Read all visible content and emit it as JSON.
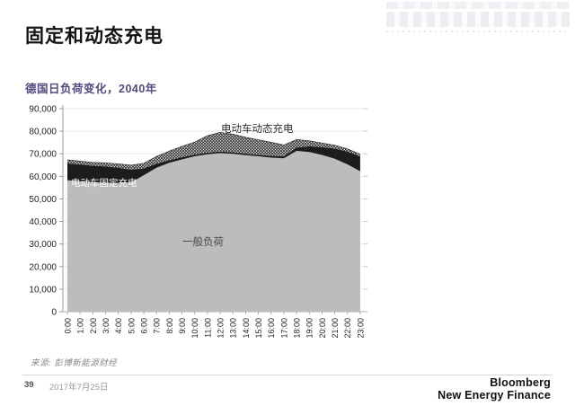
{
  "slide": {
    "title": "固定和动态充电",
    "subtitle": "德国日负荷变化，2040年"
  },
  "chart_data": {
    "type": "area",
    "stacked": true,
    "title": "德国日负荷变化，2040年",
    "xlabel": "",
    "ylabel": "",
    "ylim": [
      0,
      90000
    ],
    "ytick_step": 10000,
    "yticks": [
      "0",
      "10,000",
      "20,000",
      "30,000",
      "40,000",
      "50,000",
      "60,000",
      "70,000",
      "80,000",
      "90,000"
    ],
    "grid": "horizontal-faint",
    "legend": "inline-labels-on-areas",
    "categories": [
      "0:00",
      "1:00",
      "2:00",
      "3:00",
      "4:00",
      "5:00",
      "6:00",
      "7:00",
      "8:00",
      "9:00",
      "10:00",
      "11:00",
      "12:00",
      "13:00",
      "14:00",
      "15:00",
      "16:00",
      "17:00",
      "18:00",
      "19:00",
      "20:00",
      "21:00",
      "22:00",
      "23:00"
    ],
    "series": [
      {
        "name": "一般负荷",
        "style": "solid",
        "color": "#bcbcbc",
        "values": [
          58300,
          57800,
          57400,
          57200,
          57100,
          57300,
          60500,
          63800,
          66000,
          67500,
          68900,
          69800,
          70300,
          70000,
          69400,
          68900,
          68300,
          68000,
          71300,
          70800,
          69500,
          67800,
          65300,
          62300
        ]
      },
      {
        "name": "电动车固定充电",
        "style": "solid",
        "color": "#1c1c1c",
        "values": [
          7400,
          7500,
          7300,
          7200,
          6700,
          5700,
          3000,
          1800,
          1200,
          1000,
          800,
          700,
          700,
          700,
          700,
          700,
          800,
          900,
          1500,
          2500,
          3500,
          4500,
          5700,
          6600
        ]
      },
      {
        "name": "电动车动态充电",
        "style": "crosshatch",
        "color": "#161616",
        "values": [
          1600,
          1500,
          1500,
          1600,
          1700,
          2000,
          2300,
          3200,
          4000,
          4800,
          5500,
          7500,
          8500,
          8000,
          7200,
          6600,
          6000,
          5000,
          3500,
          2500,
          1800,
          1500,
          1200,
          900
        ]
      }
    ]
  },
  "footer": {
    "source": "来源: 彭博新能源财经",
    "page_number": "39",
    "date": "2017年7月25日",
    "logo_line1": "Bloomberg",
    "logo_line2": "New Energy Finance"
  }
}
